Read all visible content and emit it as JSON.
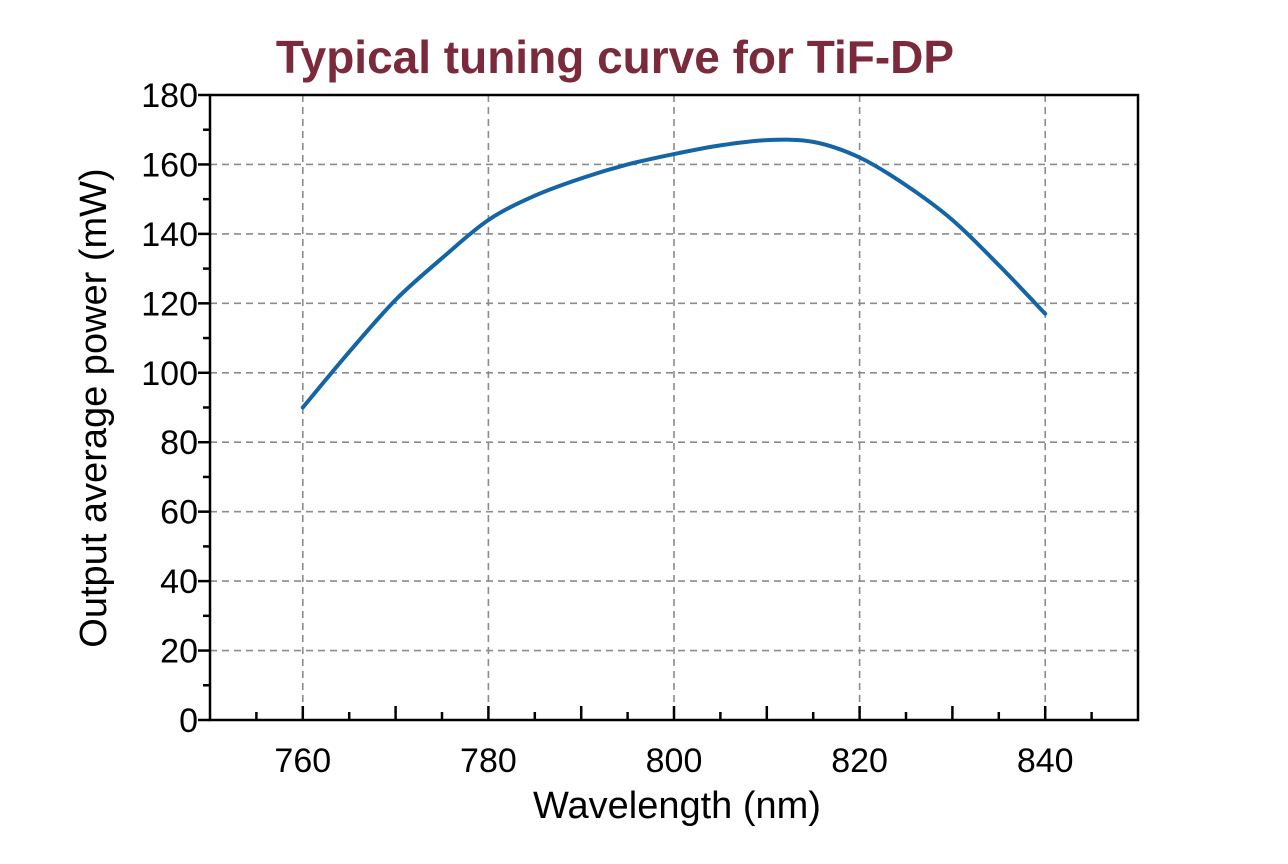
{
  "chart_data": {
    "type": "line",
    "title": "Typical tuning curve for TiF-DP",
    "xlabel": "Wavelength (nm)",
    "ylabel": "Output average power (mW)",
    "xlim": [
      750,
      850
    ],
    "ylim": [
      0,
      180
    ],
    "xticks": [
      760,
      780,
      800,
      820,
      840
    ],
    "yticks": [
      0,
      20,
      40,
      60,
      80,
      100,
      120,
      140,
      160,
      180
    ],
    "grid": true,
    "series": [
      {
        "x": [
          760,
          765,
          770,
          775,
          780,
          785,
          790,
          795,
          800,
          805,
          810,
          815,
          820,
          825,
          830,
          835,
          840
        ],
        "y": [
          90,
          106,
          121,
          133,
          144,
          151,
          156,
          160,
          163,
          165.5,
          167,
          166.5,
          162,
          154,
          144,
          131,
          117
        ]
      }
    ]
  },
  "colors": {
    "title": "#7a2a3a",
    "line": "#1465a6",
    "text": "#000000",
    "grid": "#8c8c8c"
  }
}
